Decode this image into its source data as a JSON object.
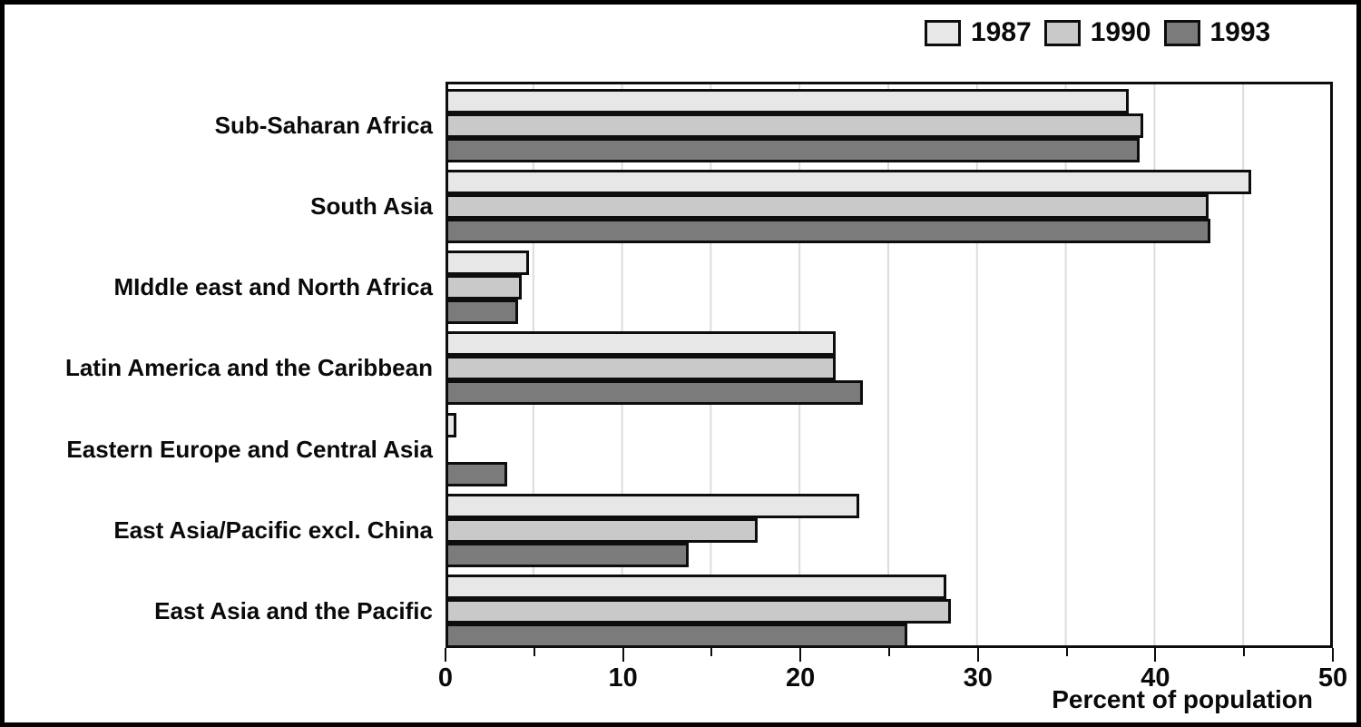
{
  "chart_data": {
    "type": "bar",
    "orientation": "horizontal",
    "title": "",
    "xlabel": "Percent of population",
    "ylabel": "",
    "xlim": [
      0,
      50
    ],
    "x_major_ticks": [
      0,
      10,
      20,
      30,
      40,
      50
    ],
    "x_minor_tick_step": 5,
    "grid": "vertical gridlines every 5 units",
    "legend_position": "top-right",
    "categories": [
      "Sub-Saharan Africa",
      "South Asia",
      "MIddle east and North Africa",
      "Latin America and the Caribbean",
      "Eastern Europe and Central Asia",
      "East Asia/Pacific excl. China",
      "East Asia and the Pacific"
    ],
    "series": [
      {
        "name": "1987",
        "color": "#e7e7e7",
        "values": [
          38.5,
          45.4,
          4.7,
          22.0,
          0.6,
          23.3,
          28.2
        ]
      },
      {
        "name": "1990",
        "color": "#c9c9c9",
        "values": [
          39.3,
          43.0,
          4.3,
          22.0,
          0,
          17.6,
          28.5
        ]
      },
      {
        "name": "1993",
        "color": "#7b7b7b",
        "values": [
          39.1,
          43.1,
          4.1,
          23.5,
          3.5,
          13.7,
          26.0
        ]
      }
    ]
  },
  "colors": {
    "background": "#ffffff",
    "frame": "#000000",
    "bar_border": "#0d0d0d",
    "gridline": "#dcdcdc",
    "text": "#0a0a0a"
  }
}
